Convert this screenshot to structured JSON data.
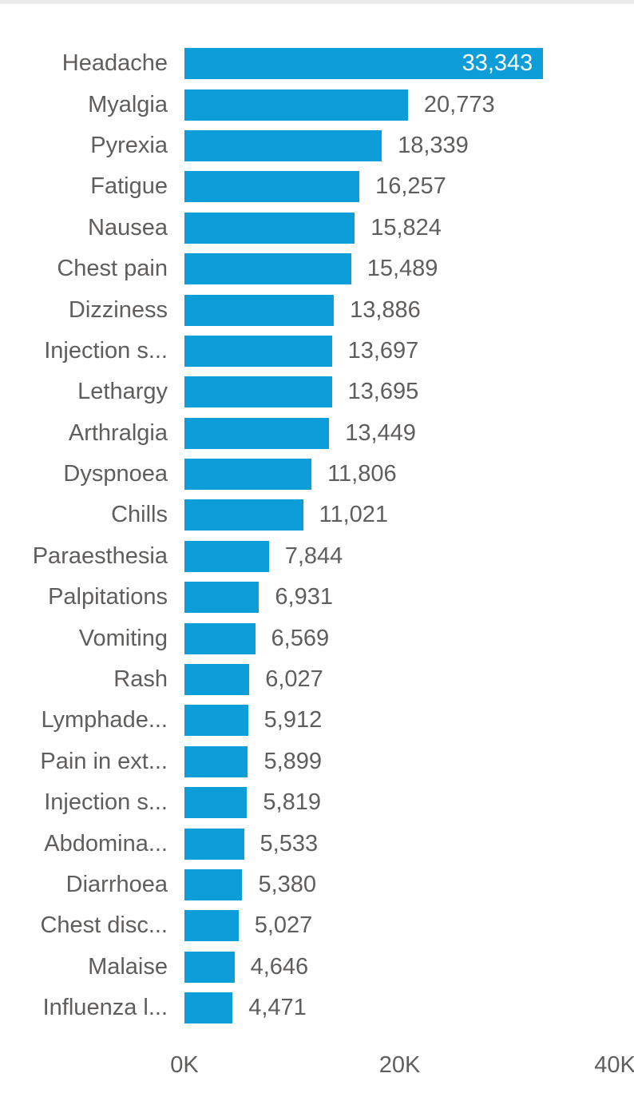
{
  "page": {
    "top_strip_color": "#ebebeb"
  },
  "chart_data": {
    "type": "bar",
    "orientation": "horizontal",
    "categories": [
      "Headache",
      "Myalgia",
      "Pyrexia",
      "Fatigue",
      "Nausea",
      "Chest pain",
      "Dizziness",
      "Injection s...",
      "Lethargy",
      "Arthralgia",
      "Dyspnoea",
      "Chills",
      "Paraesthesia",
      "Palpitations",
      "Vomiting",
      "Rash",
      "Lymphade...",
      "Pain in ext...",
      "Injection s...",
      "Abdomina...",
      "Diarrhoea",
      "Chest disc...",
      "Malaise",
      "Influenza l..."
    ],
    "values": [
      33343,
      20773,
      18339,
      16257,
      15824,
      15489,
      13886,
      13697,
      13695,
      13449,
      11806,
      11021,
      7844,
      6931,
      6569,
      6027,
      5912,
      5899,
      5819,
      5533,
      5380,
      5027,
      4646,
      4471
    ],
    "value_labels": [
      "33,343",
      "20,773",
      "18,339",
      "16,257",
      "15,824",
      "15,489",
      "13,886",
      "13,697",
      "13,695",
      "13,449",
      "11,806",
      "11,021",
      "7,844",
      "6,931",
      "6,569",
      "6,027",
      "5,912",
      "5,899",
      "5,819",
      "5,533",
      "5,380",
      "5,027",
      "4,646",
      "4,471"
    ],
    "xlim": [
      0,
      40000
    ],
    "x_ticks": [
      "0K",
      "20K",
      "40K"
    ],
    "grid": "off",
    "legend": "none",
    "bar_color": "#0d9ed9",
    "label_color": "#605e5c",
    "inside_label_color": "#ffffff"
  }
}
